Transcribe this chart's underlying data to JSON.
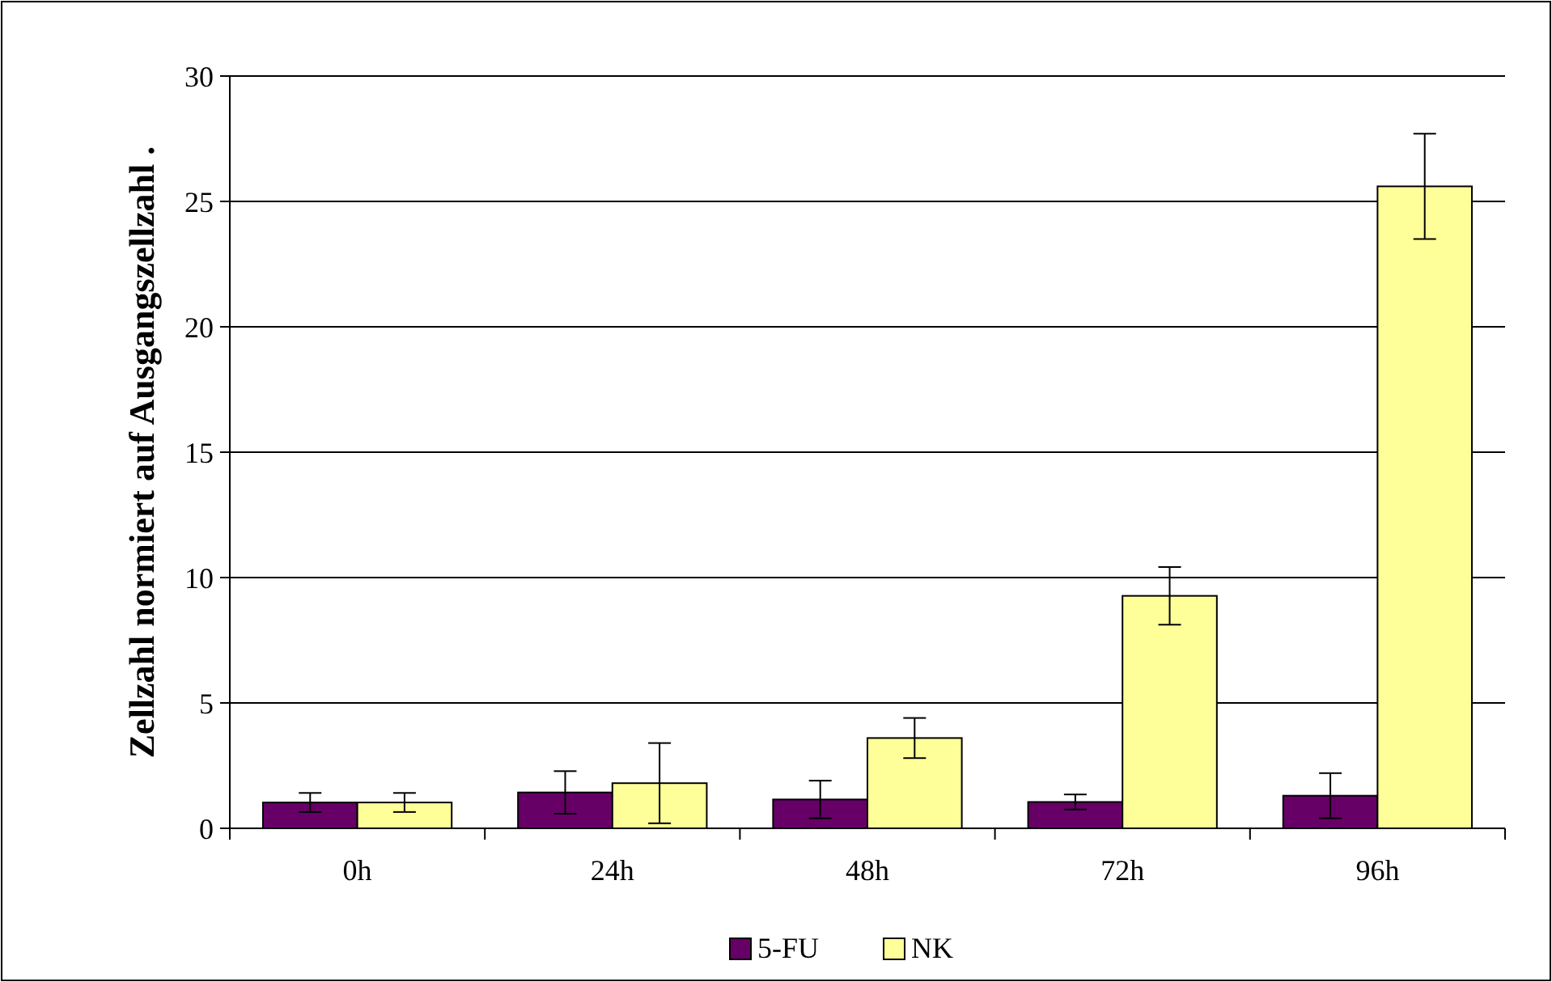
{
  "chart_data": {
    "type": "bar",
    "ylabel": "Zellzahl normiert auf Ausgangszellzahl .",
    "categories": [
      "0h",
      "24h",
      "48h",
      "72h",
      "96h"
    ],
    "series": [
      {
        "name": "5-FU",
        "color": "#660066",
        "values": [
          1.03,
          1.43,
          1.15,
          1.05,
          1.3
        ],
        "errors": [
          0.38,
          0.85,
          0.75,
          0.3,
          0.9
        ]
      },
      {
        "name": "NK",
        "color": "#ffff99",
        "values": [
          1.03,
          1.8,
          3.6,
          9.27,
          25.6
        ],
        "errors": [
          0.38,
          1.6,
          0.8,
          1.15,
          2.1
        ]
      }
    ],
    "ylim": [
      0,
      30
    ],
    "yticks": [
      0,
      5,
      10,
      15,
      20,
      25,
      30
    ],
    "grid": "y",
    "legend": "bottom"
  }
}
